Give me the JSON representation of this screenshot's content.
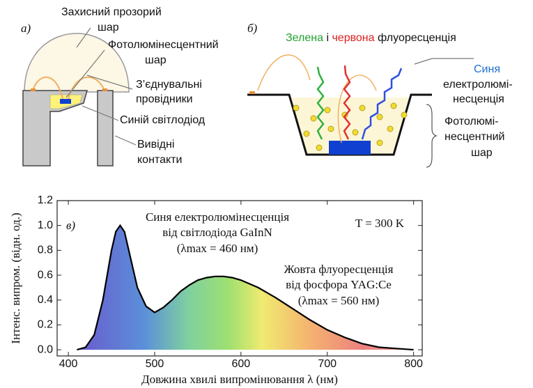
{
  "diagram_a": {
    "label": "а)",
    "protective_layer": [
      "Захисний прозорий",
      "шар"
    ],
    "phosphor_layer": [
      "Фотолюмінесцентний",
      "шар"
    ],
    "wires": [
      "З’єднувальні",
      "провідники"
    ],
    "blue_led": "Синій світлодіод",
    "leads": [
      "Вивідні",
      "контакти"
    ]
  },
  "diagram_b": {
    "label": "б)",
    "title": [
      "Зелена",
      " і ",
      "червона",
      " флуоресценція"
    ],
    "blue_el": [
      "Синя",
      "електролюмі-",
      "несценція"
    ],
    "phosphor_layer": [
      "Фотолюмі-",
      "несцентний",
      "шар"
    ]
  },
  "chart_data": {
    "type": "line",
    "label": "в)",
    "x": [
      410,
      420,
      430,
      440,
      450,
      455,
      460,
      465,
      470,
      480,
      490,
      500,
      510,
      520,
      530,
      540,
      550,
      560,
      570,
      580,
      590,
      600,
      620,
      640,
      660,
      680,
      700,
      720,
      740,
      760,
      780,
      800
    ],
    "values": [
      0,
      0.02,
      0.12,
      0.4,
      0.8,
      0.95,
      1.0,
      0.95,
      0.8,
      0.5,
      0.35,
      0.3,
      0.34,
      0.4,
      0.47,
      0.52,
      0.56,
      0.58,
      0.59,
      0.59,
      0.58,
      0.56,
      0.5,
      0.42,
      0.33,
      0.24,
      0.16,
      0.1,
      0.05,
      0.02,
      0.01,
      0
    ],
    "color": "#000000",
    "xlim": [
      387,
      810
    ],
    "ylim": [
      -0.05,
      1.2
    ],
    "xticks": [
      400,
      500,
      600,
      700,
      800
    ],
    "yticks": [
      {
        "value": 0,
        "label": "0.0"
      },
      0.2,
      0.4,
      0.6,
      0.8,
      {
        "value": 1,
        "label": "1.0"
      },
      1.2
    ],
    "xlabel": "Довжина хвилі випромінювання λ (нм)",
    "ylabel": "Інтенс. випром. (відн. од.)",
    "annotations": [
      "Синя електролюмінесценція",
      "від світлодіода GaInN",
      "(λmax = 460 нм)",
      "Жовта флуоресценція",
      "від фосфора YAG:Ce",
      "(λmax = 560 нм)",
      "T = 300 K"
    ]
  }
}
